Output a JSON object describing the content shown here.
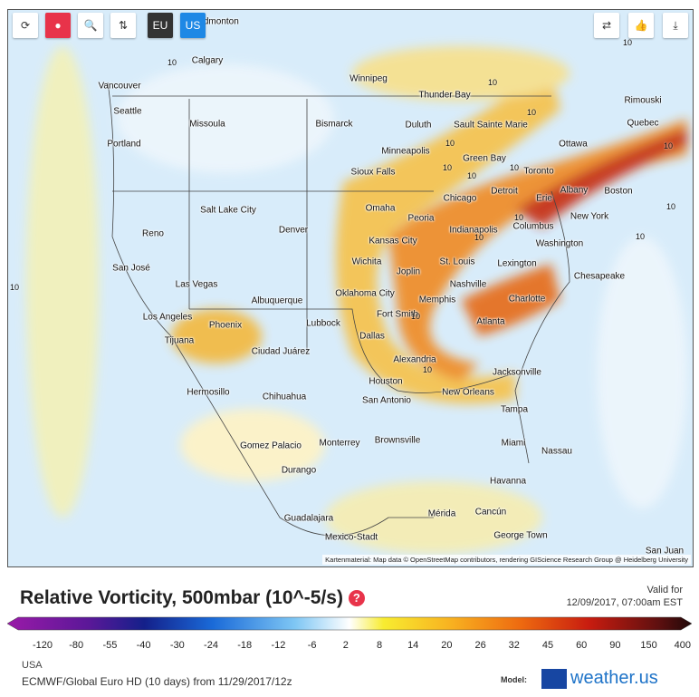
{
  "toolbar": {
    "region_buttons": [
      "EU",
      "US"
    ]
  },
  "cities": [
    "Edmonton",
    "Calgary",
    "Winnipeg",
    "Vancouver",
    "Thunder Bay",
    "Rimouski",
    "Seattle",
    "Missoula",
    "Bismarck",
    "Duluth",
    "Sault Sainte Marie",
    "Quebec",
    "Portland",
    "Minneapolis",
    "Ottawa",
    "Green Bay",
    "Sioux Falls",
    "Toronto",
    "Albany",
    "Boston",
    "Detroit",
    "Erie",
    "Chicago",
    "Salt Lake City",
    "Omaha",
    "Peoria",
    "New York",
    "Indianapolis",
    "Columbus",
    "Denver",
    "Reno",
    "Kansas City",
    "Washington",
    "Wichita",
    "St. Louis",
    "Joplin",
    "Lexington",
    "San José",
    "Chesapeake",
    "Oklahoma City",
    "Las Vegas",
    "Nashville",
    "Albuquerque",
    "Memphis",
    "Charlotte",
    "Fort Smith",
    "Los Angeles",
    "Phoenix",
    "Lubbock",
    "Atlanta",
    "Dallas",
    "Tijuana",
    "Ciudad Juárez",
    "Alexandria",
    "Houston",
    "Jacksonville",
    "Hermosillo",
    "Chihuahua",
    "San Antonio",
    "New Orleans",
    "Tampa",
    "Brownsville",
    "Monterrey",
    "Gomez Palacio",
    "Miami",
    "Nassau",
    "Durango",
    "Havanna",
    "Guadalajara",
    "Mérida",
    "Cancún",
    "George Town",
    "Mexico-Stadt",
    "San Juan"
  ],
  "contour_labels": [
    "10",
    "10",
    "10",
    "10",
    "10",
    "10",
    "10",
    "10",
    "10",
    "10",
    "10",
    "10",
    "10",
    "10",
    "10",
    "10"
  ],
  "attribution": "Kartenmaterial: Map data © OpenStreetMap contributors, rendering GIScience Research Group @ Heidelberg University",
  "title": "Relative Vorticity, 500mbar (10^-5/s)",
  "valid_for_label": "Valid for",
  "valid_for": "12/09/2017, 07:00am EST",
  "legend_ticks": [
    -120,
    -80,
    -55,
    -40,
    -30,
    -24,
    -18,
    -12,
    -6,
    2,
    8,
    14,
    20,
    26,
    32,
    45,
    60,
    90,
    150,
    400
  ],
  "region": "USA",
  "model_run": "ECMWF/Global Euro HD (10 days) from 11/29/2017/12z",
  "model_label": "Model:",
  "brand": "weather.us"
}
